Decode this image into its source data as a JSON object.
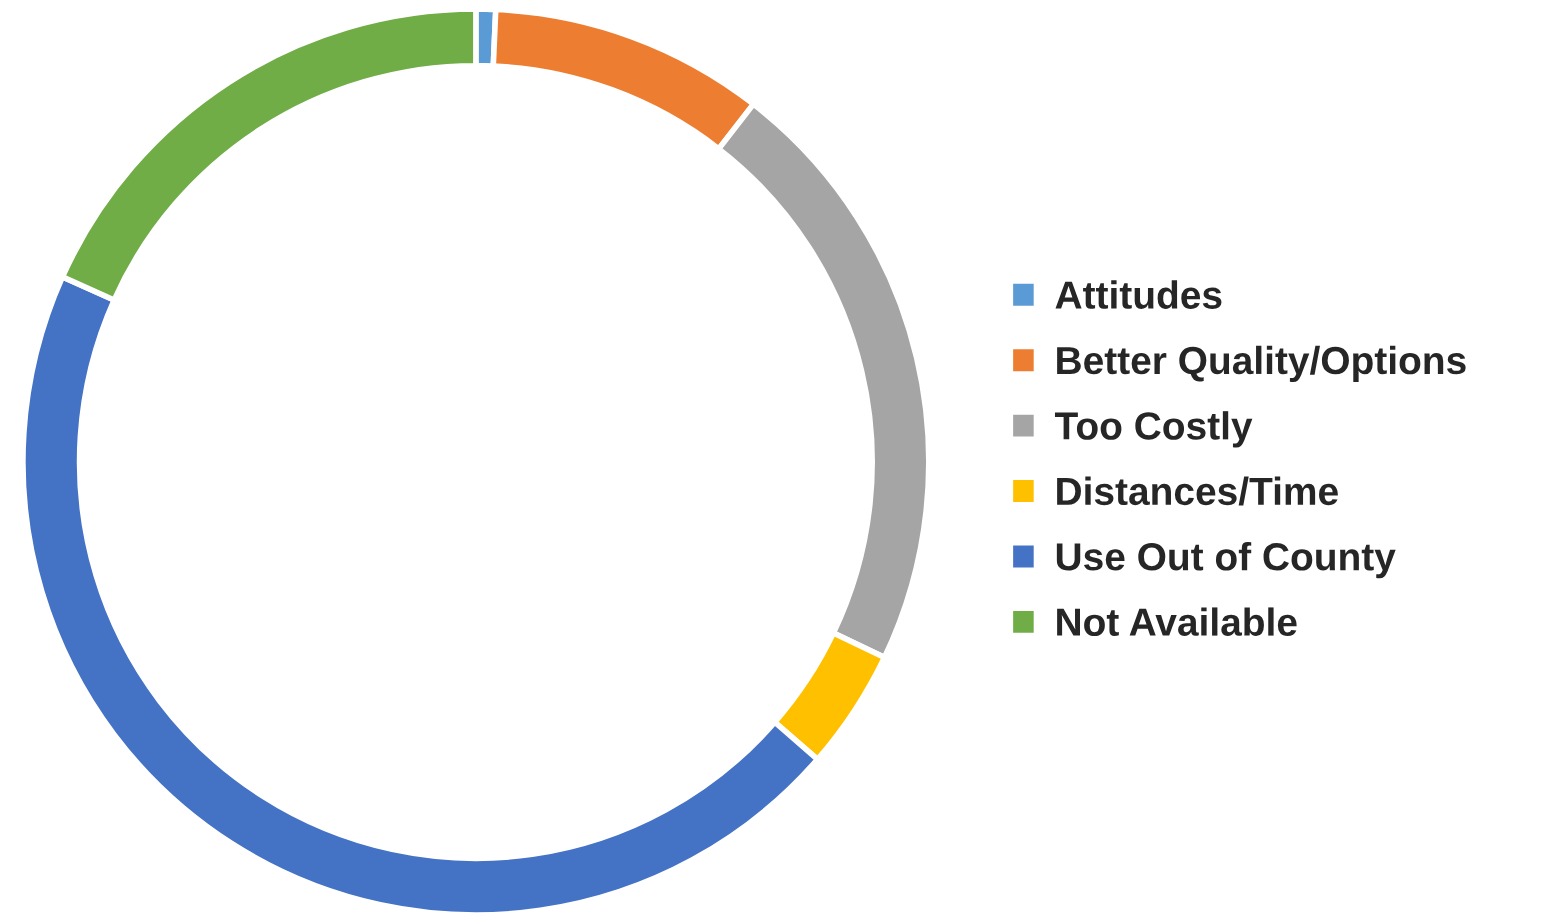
{
  "chart_data": {
    "type": "donut",
    "categories": [
      "Attitudes",
      "Better Quality/Options",
      "Too Costly",
      "Distances/Time",
      "Use Out of County",
      "Not Available"
    ],
    "values": [
      0.7,
      9.8,
      21.6,
      4.3,
      45.3,
      18.3
    ],
    "colors": [
      "#5b9bd5",
      "#ed7d31",
      "#a5a5a5",
      "#ffc000",
      "#4472c4",
      "#70ad47"
    ],
    "legend": "right"
  }
}
